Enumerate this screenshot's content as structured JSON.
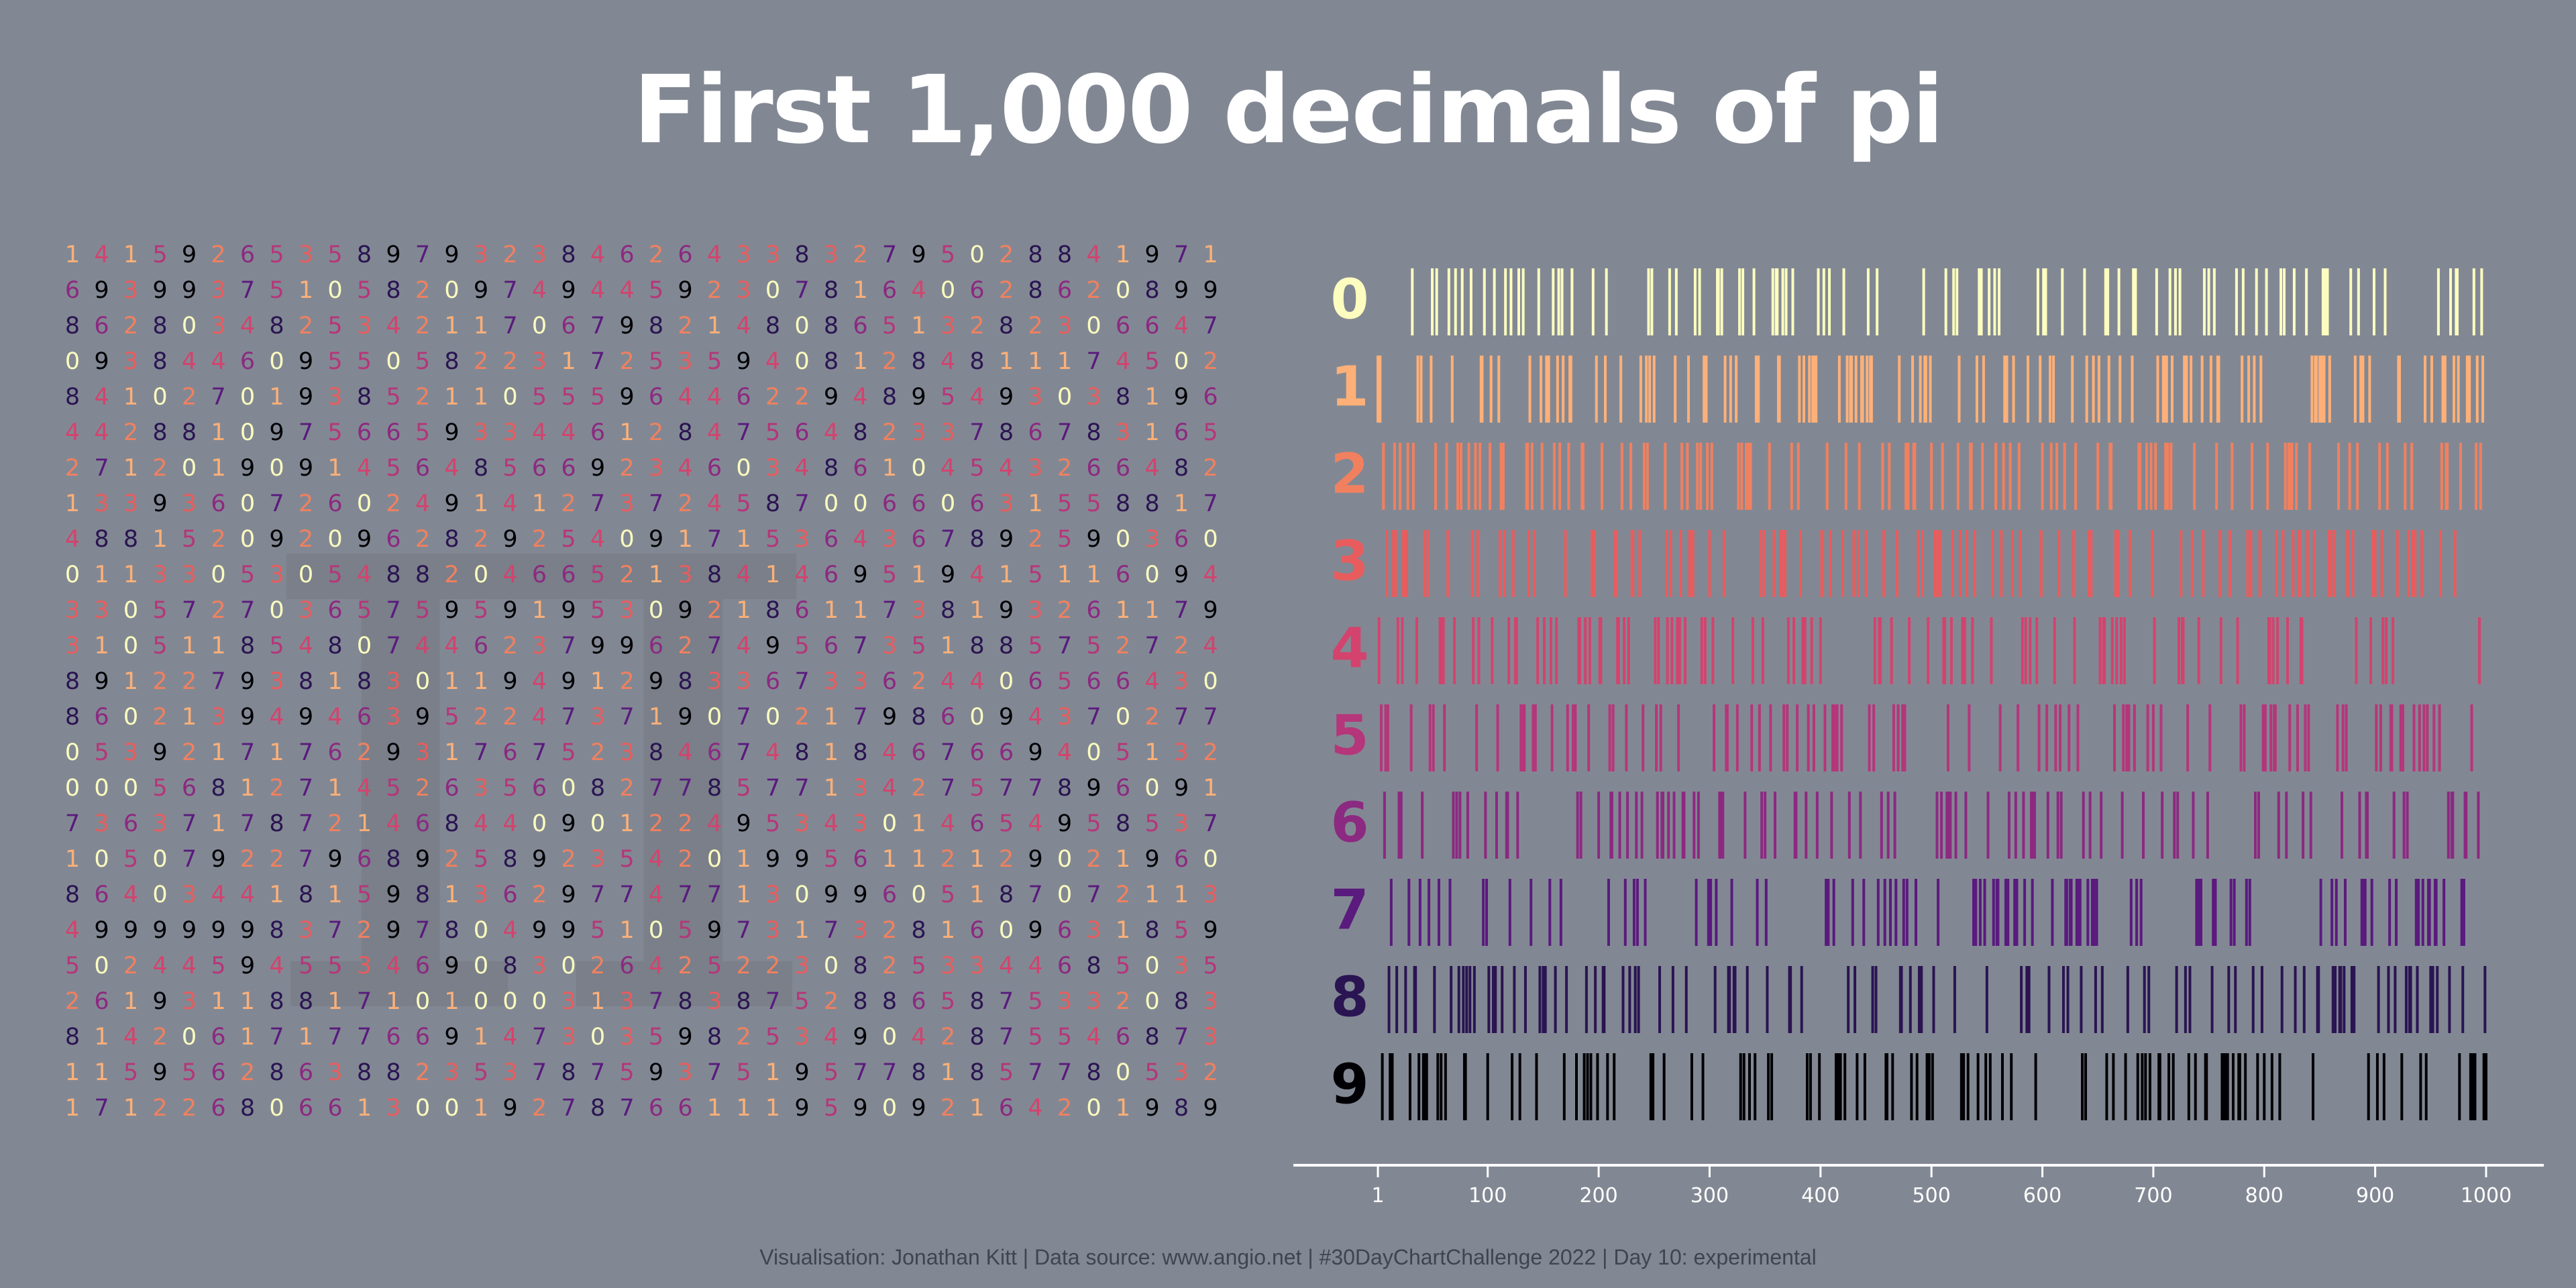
{
  "title": "First 1,000 decimals of pi",
  "caption": "Visualisation: Jonathan Kitt | Data source: www.angio.net | #30DayChartChallenge 2022 | Day 10: experimental",
  "watermark": "π",
  "palette": [
    "#fcfdbf",
    "#feb078",
    "#f1805f",
    "#e85c5e",
    "#d3436e",
    "#b5367a",
    "#8c2981",
    "#5a1a7e",
    "#2a1452",
    "#000004"
  ],
  "chart_data": {
    "type": "barcode",
    "decimals": "1415926535897932384626433832795028841971693993751058209749445923078164062862089986280348253421170679821480865132823066470938446095505822317253594081284811174502841027019385211055596446229489549303819644288109756659334461284756482337867831652712019091456485669234603486104543266482133936072602491412737245870066063155881748815209209628292540917153643678925903600113305305488204665213841469519415116094330572703657595919530921861173819326117931051185480744623799627495673518857527248912279381830119491298336733624406566430860213949463952247371907021798609437027705392171762931767523846748184676694051320005681271452635608277857713427577896091736371787214684409012249534301465495853710507922796892589235420199561121290219608640344181598136297747713099605187072113499999983729780499510597317328160963185950244594553469083026425223082533446850352619311881710100031378387528865875332083814206171776691473035982534904287554687311595628638823537875937519577818577805321712268066130019278766111959092164201989",
    "positions": {
      "min": 1,
      "max": 1000
    },
    "digit_labels": [
      "0",
      "1",
      "2",
      "3",
      "4",
      "5",
      "6",
      "7",
      "8",
      "9"
    ],
    "x_ticks": [
      1,
      100,
      200,
      300,
      400,
      500,
      600,
      700,
      800,
      900,
      1000
    ],
    "grid": {
      "columns": 40,
      "rows": 25
    }
  }
}
